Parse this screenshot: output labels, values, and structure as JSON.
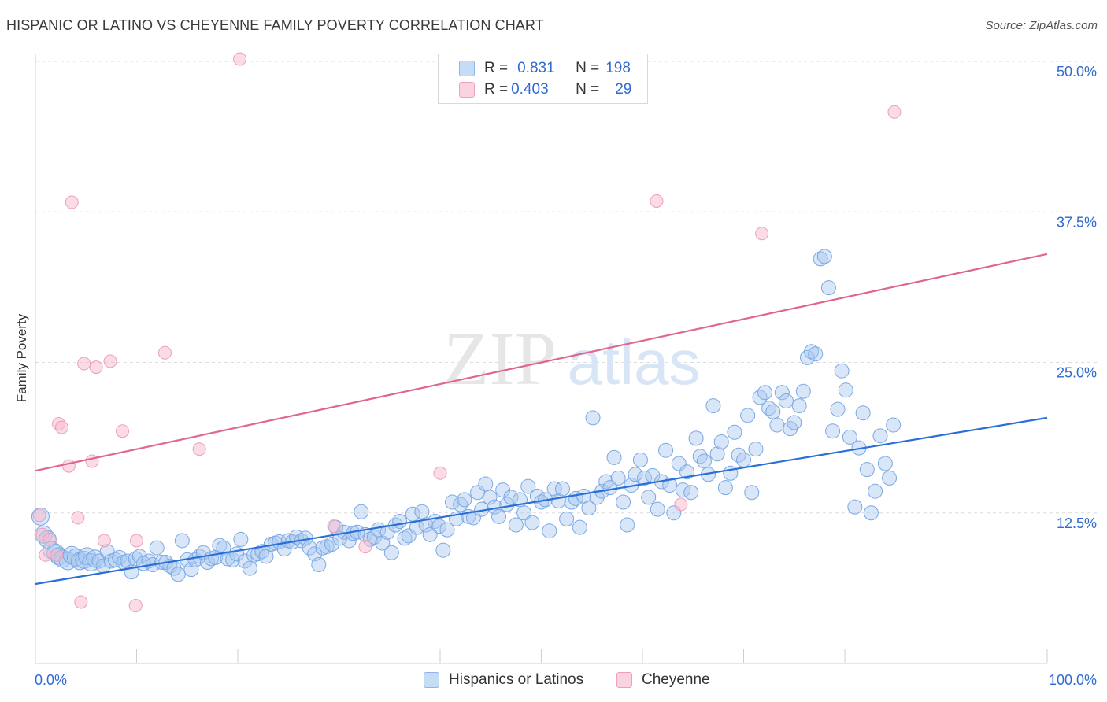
{
  "title": "HISPANIC OR LATINO VS CHEYENNE FAMILY POVERTY CORRELATION CHART",
  "source": "Source: ZipAtlas.com",
  "watermark": {
    "zip": "ZIP",
    "atlas": "atlas"
  },
  "legend_top": [
    {
      "r_label": "R =",
      "r_value": "0.831",
      "n_label": "N =",
      "n_value": "198",
      "color": "#a8c8f0"
    },
    {
      "r_label": "R =",
      "r_value": "0.403",
      "n_label": "N =",
      "n_value": "29",
      "color": "#f7b8cc"
    }
  ],
  "legend_bottom": [
    {
      "label": "Hispanics or Latinos",
      "color": "#a8c8f0"
    },
    {
      "label": "Cheyenne",
      "color": "#f7b8cc"
    }
  ],
  "chart_data": {
    "type": "scatter",
    "title": "HISPANIC OR LATINO VS CHEYENNE FAMILY POVERTY CORRELATION CHART",
    "ylabel": "Family Poverty",
    "xlabel": "",
    "xlim": [
      0,
      100
    ],
    "ylim": [
      0,
      50
    ],
    "x_tick_labels": [
      "0.0%",
      "100.0%"
    ],
    "y_ticks": [
      12.5,
      25.0,
      37.5,
      50.0
    ],
    "y_tick_labels": [
      "12.5%",
      "25.0%",
      "37.5%",
      "50.0%"
    ],
    "grid": true,
    "legend_position": "top-center",
    "series": [
      {
        "name": "Hispanics or Latinos",
        "color": "#6fa0e0",
        "trend": {
          "x": [
            0,
            100
          ],
          "y": [
            6.6,
            20.4
          ]
        },
        "points": [
          [
            0.5,
            12.2
          ],
          [
            0.8,
            10.7
          ],
          [
            1.2,
            10.3
          ],
          [
            1.6,
            9.4
          ],
          [
            2.0,
            9.2
          ],
          [
            2.3,
            8.9
          ],
          [
            2.7,
            8.7
          ],
          [
            3.2,
            8.5
          ],
          [
            3.6,
            9.0
          ],
          [
            4.0,
            8.8
          ],
          [
            4.4,
            8.5
          ],
          [
            4.8,
            8.6
          ],
          [
            5.1,
            8.9
          ],
          [
            5.5,
            8.4
          ],
          [
            5.9,
            8.7
          ],
          [
            6.3,
            8.5
          ],
          [
            6.7,
            8.1
          ],
          [
            7.1,
            9.3
          ],
          [
            7.5,
            8.5
          ],
          [
            7.9,
            8.6
          ],
          [
            8.3,
            8.8
          ],
          [
            8.7,
            8.4
          ],
          [
            9.1,
            8.5
          ],
          [
            9.5,
            7.6
          ],
          [
            9.9,
            8.7
          ],
          [
            10.3,
            8.9
          ],
          [
            10.7,
            8.3
          ],
          [
            11.2,
            8.5
          ],
          [
            11.6,
            8.2
          ],
          [
            12.0,
            9.6
          ],
          [
            12.5,
            8.4
          ],
          [
            12.9,
            8.4
          ],
          [
            13.3,
            8.1
          ],
          [
            13.7,
            7.9
          ],
          [
            14.1,
            7.4
          ],
          [
            14.5,
            10.2
          ],
          [
            15.0,
            8.6
          ],
          [
            15.4,
            7.8
          ],
          [
            15.8,
            8.6
          ],
          [
            16.2,
            8.9
          ],
          [
            16.6,
            9.2
          ],
          [
            17.0,
            8.4
          ],
          [
            17.4,
            8.7
          ],
          [
            17.8,
            8.8
          ],
          [
            18.2,
            9.8
          ],
          [
            18.6,
            9.6
          ],
          [
            19.0,
            8.7
          ],
          [
            19.5,
            8.6
          ],
          [
            19.9,
            9.1
          ],
          [
            20.3,
            10.3
          ],
          [
            20.7,
            8.5
          ],
          [
            21.2,
            7.9
          ],
          [
            21.6,
            9.0
          ],
          [
            22.0,
            9.1
          ],
          [
            22.4,
            9.3
          ],
          [
            22.8,
            8.9
          ],
          [
            23.3,
            9.9
          ],
          [
            23.7,
            10.0
          ],
          [
            24.1,
            10.1
          ],
          [
            24.6,
            9.5
          ],
          [
            25.0,
            10.2
          ],
          [
            25.4,
            10.1
          ],
          [
            25.8,
            10.5
          ],
          [
            26.3,
            10.2
          ],
          [
            26.7,
            10.4
          ],
          [
            27.1,
            9.6
          ],
          [
            27.6,
            9.1
          ],
          [
            28.0,
            8.2
          ],
          [
            28.4,
            9.6
          ],
          [
            28.8,
            9.7
          ],
          [
            29.3,
            9.9
          ],
          [
            29.7,
            11.3
          ],
          [
            30.1,
            10.4
          ],
          [
            30.5,
            10.9
          ],
          [
            31.0,
            10.2
          ],
          [
            31.4,
            10.8
          ],
          [
            31.8,
            10.9
          ],
          [
            32.2,
            12.6
          ],
          [
            32.6,
            10.7
          ],
          [
            33.1,
            10.3
          ],
          [
            33.5,
            10.5
          ],
          [
            33.9,
            11.1
          ],
          [
            34.3,
            10.0
          ],
          [
            34.8,
            10.9
          ],
          [
            35.2,
            9.2
          ],
          [
            35.6,
            11.5
          ],
          [
            36.0,
            11.8
          ],
          [
            36.5,
            10.4
          ],
          [
            36.9,
            10.6
          ],
          [
            37.3,
            12.4
          ],
          [
            37.7,
            11.3
          ],
          [
            38.2,
            12.6
          ],
          [
            38.6,
            11.5
          ],
          [
            39.0,
            10.7
          ],
          [
            39.5,
            11.8
          ],
          [
            39.9,
            11.4
          ],
          [
            40.3,
            9.4
          ],
          [
            40.7,
            11.1
          ],
          [
            41.2,
            13.4
          ],
          [
            41.6,
            12.0
          ],
          [
            42.0,
            13.2
          ],
          [
            42.4,
            13.6
          ],
          [
            42.8,
            12.2
          ],
          [
            43.3,
            12.1
          ],
          [
            43.7,
            14.2
          ],
          [
            44.1,
            12.8
          ],
          [
            44.5,
            14.9
          ],
          [
            44.9,
            13.8
          ],
          [
            45.4,
            13.0
          ],
          [
            45.8,
            12.2
          ],
          [
            46.2,
            14.4
          ],
          [
            46.6,
            13.2
          ],
          [
            47.0,
            13.8
          ],
          [
            47.5,
            11.5
          ],
          [
            47.9,
            13.6
          ],
          [
            48.3,
            12.5
          ],
          [
            48.7,
            14.7
          ],
          [
            49.1,
            11.7
          ],
          [
            49.6,
            13.9
          ],
          [
            50.0,
            13.4
          ],
          [
            50.4,
            13.6
          ],
          [
            50.8,
            11.0
          ],
          [
            51.3,
            14.5
          ],
          [
            51.7,
            13.5
          ],
          [
            52.1,
            14.5
          ],
          [
            52.5,
            12.0
          ],
          [
            53.0,
            13.4
          ],
          [
            53.4,
            13.7
          ],
          [
            53.8,
            11.3
          ],
          [
            54.2,
            13.9
          ],
          [
            54.7,
            12.9
          ],
          [
            55.1,
            20.4
          ],
          [
            55.5,
            13.8
          ],
          [
            56.0,
            14.3
          ],
          [
            56.4,
            15.1
          ],
          [
            56.8,
            14.6
          ],
          [
            57.2,
            17.1
          ],
          [
            57.6,
            15.4
          ],
          [
            58.1,
            13.4
          ],
          [
            58.5,
            11.5
          ],
          [
            58.9,
            14.8
          ],
          [
            59.3,
            15.7
          ],
          [
            59.8,
            16.9
          ],
          [
            60.2,
            15.4
          ],
          [
            60.6,
            13.8
          ],
          [
            61.0,
            15.6
          ],
          [
            61.5,
            12.8
          ],
          [
            61.9,
            15.1
          ],
          [
            62.3,
            17.7
          ],
          [
            62.7,
            14.8
          ],
          [
            63.1,
            12.5
          ],
          [
            63.6,
            16.6
          ],
          [
            64.0,
            14.4
          ],
          [
            64.4,
            15.9
          ],
          [
            64.8,
            14.2
          ],
          [
            65.3,
            18.7
          ],
          [
            65.7,
            17.2
          ],
          [
            66.1,
            16.8
          ],
          [
            66.5,
            15.7
          ],
          [
            67.0,
            21.4
          ],
          [
            67.4,
            17.4
          ],
          [
            67.8,
            18.4
          ],
          [
            68.2,
            14.6
          ],
          [
            68.7,
            15.8
          ],
          [
            69.1,
            19.2
          ],
          [
            69.5,
            17.3
          ],
          [
            70.0,
            16.9
          ],
          [
            70.4,
            20.6
          ],
          [
            70.8,
            14.2
          ],
          [
            71.2,
            17.8
          ],
          [
            71.6,
            22.1
          ],
          [
            72.1,
            22.5
          ],
          [
            72.5,
            21.2
          ],
          [
            72.9,
            20.9
          ],
          [
            73.3,
            19.8
          ],
          [
            73.8,
            22.5
          ],
          [
            74.2,
            21.8
          ],
          [
            74.6,
            19.5
          ],
          [
            75.0,
            20.0
          ],
          [
            75.5,
            21.4
          ],
          [
            75.9,
            22.6
          ],
          [
            76.3,
            25.4
          ],
          [
            76.7,
            25.9
          ],
          [
            77.1,
            25.7
          ],
          [
            77.6,
            33.6
          ],
          [
            78.0,
            33.8
          ],
          [
            78.4,
            31.2
          ],
          [
            78.8,
            19.3
          ],
          [
            79.3,
            21.1
          ],
          [
            79.7,
            24.3
          ],
          [
            80.1,
            22.7
          ],
          [
            80.5,
            18.8
          ],
          [
            81.0,
            13.0
          ],
          [
            81.4,
            17.9
          ],
          [
            81.8,
            20.8
          ],
          [
            82.2,
            16.1
          ],
          [
            82.6,
            12.5
          ],
          [
            83.0,
            14.3
          ],
          [
            83.5,
            18.9
          ],
          [
            84.0,
            16.6
          ],
          [
            84.4,
            15.4
          ],
          [
            84.8,
            19.8
          ]
        ]
      },
      {
        "name": "Cheyenne",
        "color": "#f0a0bb",
        "trend": {
          "x": [
            0,
            100
          ],
          "y": [
            16.0,
            34.0
          ]
        },
        "points": [
          [
            0.4,
            12.3
          ],
          [
            0.7,
            10.7
          ],
          [
            1.0,
            9.0
          ],
          [
            1.4,
            10.3
          ],
          [
            2.1,
            9.0
          ],
          [
            2.3,
            19.9
          ],
          [
            2.6,
            19.6
          ],
          [
            3.3,
            16.4
          ],
          [
            3.6,
            38.3
          ],
          [
            4.2,
            12.1
          ],
          [
            4.5,
            5.1
          ],
          [
            4.8,
            24.9
          ],
          [
            5.6,
            16.8
          ],
          [
            6.0,
            24.6
          ],
          [
            6.8,
            10.2
          ],
          [
            7.4,
            25.1
          ],
          [
            8.6,
            19.3
          ],
          [
            9.9,
            4.8
          ],
          [
            10.0,
            10.2
          ],
          [
            12.8,
            25.8
          ],
          [
            16.2,
            17.8
          ],
          [
            20.2,
            50.2
          ],
          [
            29.5,
            11.4
          ],
          [
            32.6,
            9.7
          ],
          [
            40.0,
            15.8
          ],
          [
            61.4,
            38.4
          ],
          [
            63.8,
            13.2
          ],
          [
            71.8,
            35.7
          ],
          [
            84.9,
            45.8
          ]
        ]
      }
    ]
  }
}
